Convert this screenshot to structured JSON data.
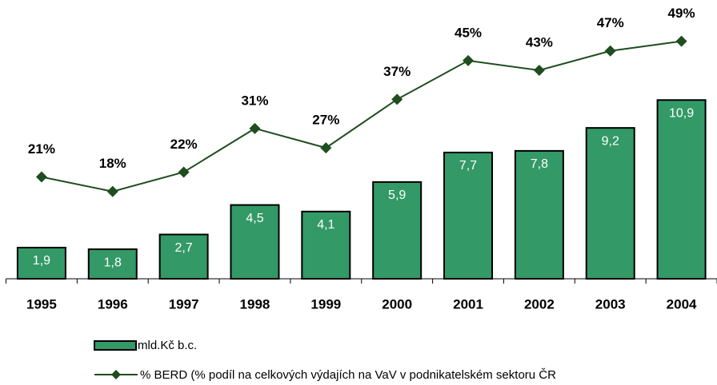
{
  "chart_data": {
    "type": "bar-line",
    "categories": [
      "1995",
      "1996",
      "1997",
      "1998",
      "1999",
      "2000",
      "2001",
      "2002",
      "2003",
      "2004"
    ],
    "series": [
      {
        "name": "mld.Kč b.c.",
        "type": "bar",
        "color": "#339966",
        "values": [
          1.9,
          1.8,
          2.7,
          4.5,
          4.1,
          5.9,
          7.7,
          7.8,
          9.2,
          10.9
        ],
        "value_labels": [
          "1,9",
          "1,8",
          "2,7",
          "4,5",
          "4,1",
          "5,9",
          "7,7",
          "7,8",
          "9,2",
          "10,9"
        ]
      },
      {
        "name": "% BERD (% podíl na celkových výdajích na VaV v podnikatelském sektoru ČR",
        "type": "line",
        "axis": "y2",
        "color": "#1f4d1f",
        "values": [
          21,
          18,
          22,
          31,
          27,
          37,
          45,
          43,
          47,
          49
        ],
        "value_labels": [
          "21%",
          "18%",
          "22%",
          "31%",
          "27%",
          "37%",
          "45%",
          "43%",
          "47%",
          "49%"
        ]
      }
    ],
    "ylim": [
      0,
      17
    ],
    "y2lim": [
      0,
      57.5
    ],
    "grid": false
  }
}
